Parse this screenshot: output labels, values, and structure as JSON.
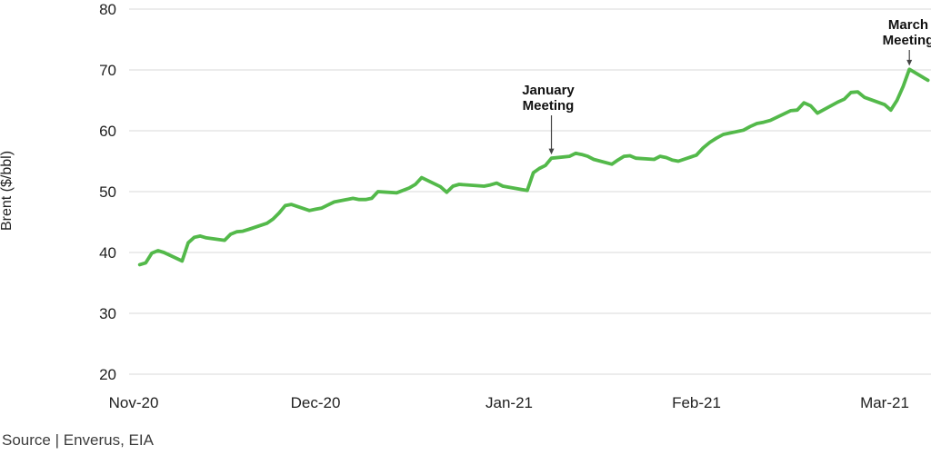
{
  "chart_data": {
    "type": "line",
    "title": "",
    "ylabel": "Brent ($/bbl)",
    "source": "Source | Enverus, EIA",
    "grid": "horizontal",
    "legend": "none",
    "y_axis": {
      "min": 20,
      "max": 80,
      "tick_step": 10,
      "ticks": [
        80,
        70,
        60,
        50,
        40,
        30,
        20
      ]
    },
    "x_axis": {
      "ticks": [
        {
          "label": "Nov-20",
          "date": "2020-11-01"
        },
        {
          "label": "Dec-20",
          "date": "2020-12-01"
        },
        {
          "label": "Jan-21",
          "date": "2021-01-01"
        },
        {
          "label": "Feb-21",
          "date": "2021-02-01"
        },
        {
          "label": "Mar-21",
          "date": "2021-03-01"
        }
      ]
    },
    "series": [
      {
        "name": "Brent price",
        "color": "#53b94a",
        "points": [
          [
            "2020-11-02",
            38.0
          ],
          [
            "2020-11-03",
            38.3
          ],
          [
            "2020-11-04",
            39.9
          ],
          [
            "2020-11-05",
            40.3
          ],
          [
            "2020-11-06",
            40.0
          ],
          [
            "2020-11-09",
            38.6
          ],
          [
            "2020-11-10",
            41.6
          ],
          [
            "2020-11-11",
            42.5
          ],
          [
            "2020-11-12",
            42.7
          ],
          [
            "2020-11-13",
            42.4
          ],
          [
            "2020-11-16",
            42.0
          ],
          [
            "2020-11-17",
            43.0
          ],
          [
            "2020-11-18",
            43.4
          ],
          [
            "2020-11-19",
            43.5
          ],
          [
            "2020-11-20",
            43.8
          ],
          [
            "2020-11-23",
            44.8
          ],
          [
            "2020-11-24",
            45.5
          ],
          [
            "2020-11-25",
            46.5
          ],
          [
            "2020-11-26",
            47.7
          ],
          [
            "2020-11-27",
            47.9
          ],
          [
            "2020-11-30",
            46.9
          ],
          [
            "2020-12-01",
            47.1
          ],
          [
            "2020-12-02",
            47.3
          ],
          [
            "2020-12-03",
            47.8
          ],
          [
            "2020-12-04",
            48.3
          ],
          [
            "2020-12-07",
            48.9
          ],
          [
            "2020-12-08",
            48.7
          ],
          [
            "2020-12-09",
            48.7
          ],
          [
            "2020-12-10",
            48.9
          ],
          [
            "2020-12-11",
            50.0
          ],
          [
            "2020-12-14",
            49.8
          ],
          [
            "2020-12-15",
            50.2
          ],
          [
            "2020-12-16",
            50.6
          ],
          [
            "2020-12-17",
            51.2
          ],
          [
            "2020-12-18",
            52.3
          ],
          [
            "2020-12-21",
            50.8
          ],
          [
            "2020-12-22",
            49.9
          ],
          [
            "2020-12-23",
            50.9
          ],
          [
            "2020-12-24",
            51.2
          ],
          [
            "2020-12-28",
            50.9
          ],
          [
            "2020-12-29",
            51.1
          ],
          [
            "2020-12-30",
            51.4
          ],
          [
            "2020-12-31",
            50.9
          ],
          [
            "2021-01-04",
            50.2
          ],
          [
            "2021-01-05",
            53.1
          ],
          [
            "2021-01-06",
            53.8
          ],
          [
            "2021-01-07",
            54.3
          ],
          [
            "2021-01-08",
            55.5
          ],
          [
            "2021-01-11",
            55.8
          ],
          [
            "2021-01-12",
            56.3
          ],
          [
            "2021-01-13",
            56.1
          ],
          [
            "2021-01-14",
            55.8
          ],
          [
            "2021-01-15",
            55.3
          ],
          [
            "2021-01-18",
            54.5
          ],
          [
            "2021-01-19",
            55.2
          ],
          [
            "2021-01-20",
            55.8
          ],
          [
            "2021-01-21",
            55.9
          ],
          [
            "2021-01-22",
            55.5
          ],
          [
            "2021-01-25",
            55.3
          ],
          [
            "2021-01-26",
            55.8
          ],
          [
            "2021-01-27",
            55.6
          ],
          [
            "2021-01-28",
            55.2
          ],
          [
            "2021-01-29",
            55.0
          ],
          [
            "2021-02-01",
            56.0
          ],
          [
            "2021-02-02",
            57.2
          ],
          [
            "2021-02-03",
            58.1
          ],
          [
            "2021-02-04",
            58.8
          ],
          [
            "2021-02-05",
            59.4
          ],
          [
            "2021-02-08",
            60.1
          ],
          [
            "2021-02-09",
            60.7
          ],
          [
            "2021-02-10",
            61.2
          ],
          [
            "2021-02-11",
            61.4
          ],
          [
            "2021-02-12",
            61.7
          ],
          [
            "2021-02-15",
            63.3
          ],
          [
            "2021-02-16",
            63.4
          ],
          [
            "2021-02-17",
            64.6
          ],
          [
            "2021-02-18",
            64.1
          ],
          [
            "2021-02-19",
            62.9
          ],
          [
            "2021-02-22",
            64.7
          ],
          [
            "2021-02-23",
            65.2
          ],
          [
            "2021-02-24",
            66.3
          ],
          [
            "2021-02-25",
            66.4
          ],
          [
            "2021-02-26",
            65.5
          ],
          [
            "2021-03-01",
            64.3
          ],
          [
            "2021-03-02",
            63.4
          ],
          [
            "2021-03-03",
            65.0
          ],
          [
            "2021-03-04",
            67.3
          ],
          [
            "2021-03-05",
            70.1
          ],
          [
            "2021-03-08",
            68.3
          ]
        ]
      }
    ],
    "annotations": [
      {
        "lines": [
          "January",
          "Meeting"
        ],
        "target_date": "2021-01-08",
        "target_value": 55.5
      },
      {
        "lines": [
          "March",
          "Meeting"
        ],
        "target_date": "2021-03-05",
        "target_value": 70.1
      }
    ]
  }
}
